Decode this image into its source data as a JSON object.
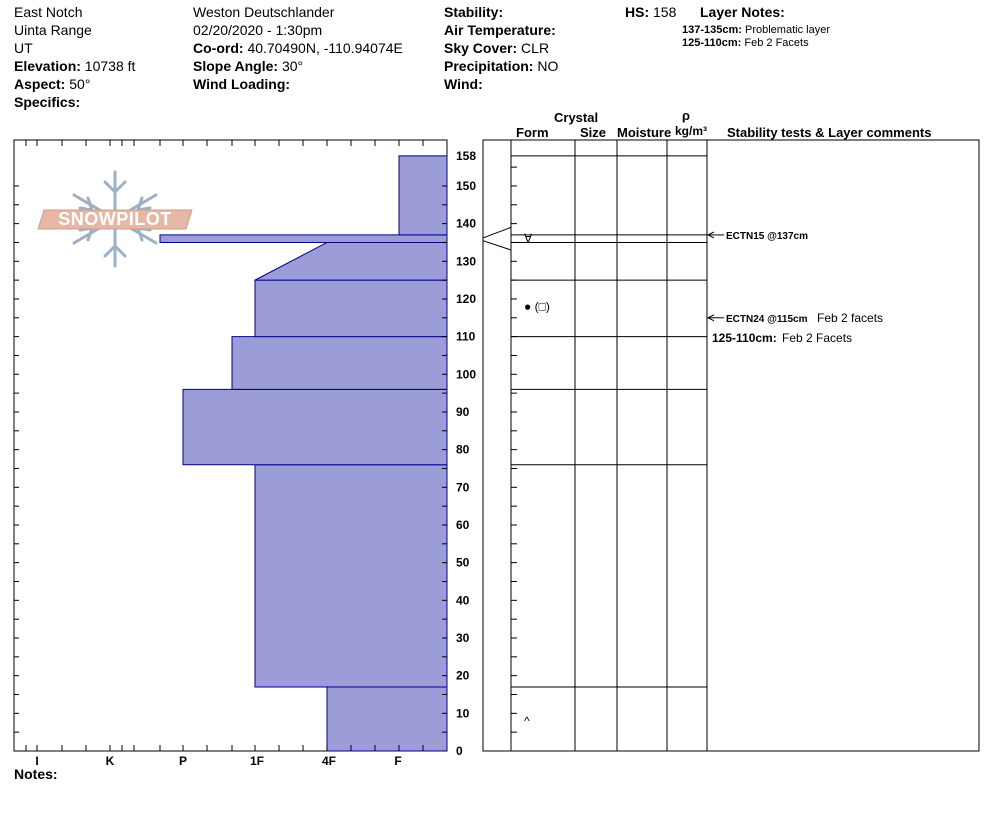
{
  "header": {
    "location": "East Notch",
    "range": "Uinta Range",
    "state": "UT",
    "elevation_label": "Elevation:",
    "elevation_value": "10738 ft",
    "aspect_label": "Aspect:",
    "aspect_value": "50°",
    "specifics_label": "Specifics:",
    "observer": "Weston Deutschlander",
    "datetime": "02/20/2020 - 1:30pm",
    "coord_label": "Co-ord:",
    "coord_value": "40.70490N, -110.94074E",
    "slope_label": "Slope Angle:",
    "slope_value": "30°",
    "wind_loading_label": "Wind Loading:",
    "stability_label": "Stability:",
    "air_temp_label": "Air Temperature:",
    "sky_label": "Sky Cover:",
    "sky_value": "CLR",
    "precip_label": "Precipitation:",
    "precip_value": "NO",
    "wind_label": "Wind:",
    "hs_label": "HS:",
    "hs_value": "158",
    "layer_notes_label": "Layer Notes:",
    "layer_notes": [
      {
        "range": "137-135cm:",
        "text": "Problematic layer"
      },
      {
        "range": "125-110cm:",
        "text": "Feb 2 Facets"
      }
    ]
  },
  "logo_text": "SNOWPILOT",
  "columns": {
    "crystal": "Crystal",
    "form": "Form",
    "size": "Size",
    "moisture": "Moisture",
    "rho": "ρ",
    "density_unit": "kg/m³",
    "comments": "Stability tests & Layer comments"
  },
  "notes_label": "Notes:",
  "colors": {
    "hardness_fill": "#9c9cd8",
    "hardness_stroke": "#00008b"
  },
  "chart_data": {
    "type": "snow-profile",
    "y_axis": {
      "unit": "cm",
      "range": [
        0,
        158
      ],
      "ticks": [
        0,
        10,
        20,
        30,
        40,
        50,
        60,
        70,
        80,
        90,
        100,
        110,
        120,
        130,
        140,
        150,
        158
      ]
    },
    "hardness_scale": [
      "I",
      "K",
      "P",
      "1F",
      "4F",
      "F"
    ],
    "layers": [
      {
        "bottom": 0,
        "top": 17,
        "hardness": "4F"
      },
      {
        "bottom": 17,
        "top": 76,
        "hardness": "1F"
      },
      {
        "bottom": 76,
        "top": 96,
        "hardness": "P+"
      },
      {
        "bottom": 96,
        "top": 110,
        "hardness": "1F-"
      },
      {
        "bottom": 110,
        "top": 125,
        "hardness": "1F"
      },
      {
        "bottom": 125,
        "top": 135,
        "hardness_bottom": "1F",
        "hardness_top": "4F"
      },
      {
        "bottom": 135,
        "top": 137,
        "hardness": "K+"
      },
      {
        "bottom": 137,
        "top": 158,
        "hardness": "F+"
      }
    ],
    "grain_forms": [
      {
        "height": 136,
        "symbol": "∀"
      },
      {
        "height": 118,
        "symbol": "● (□)"
      },
      {
        "height": 8,
        "symbol": "^"
      }
    ],
    "stability_tests": [
      {
        "height": 137,
        "result": "ECTN15 @137cm",
        "comment": ""
      },
      {
        "height": 115,
        "result": "ECTN24 @115cm",
        "comment": "Feb 2 facets"
      }
    ],
    "layer_comments": [
      {
        "range": "125-110cm:",
        "text": "Feb 2 Facets"
      }
    ]
  }
}
